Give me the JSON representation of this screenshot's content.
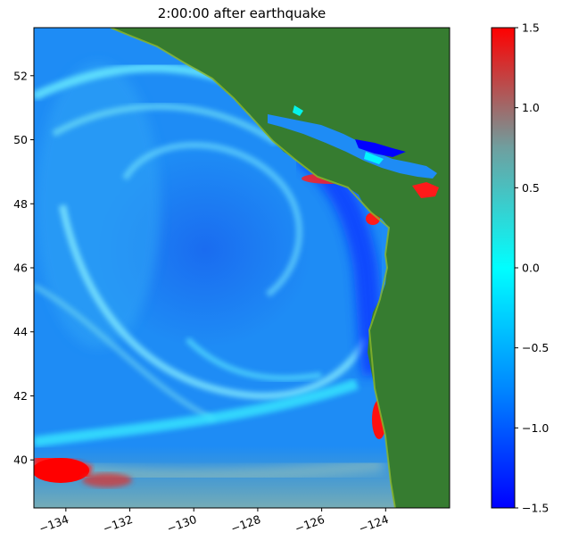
{
  "title": "2:00:00 after earthquake",
  "map": {
    "x_ticks": [
      "−134",
      "−132",
      "−130",
      "−128",
      "−126",
      "−124"
    ],
    "x_tick_values": [
      -134,
      -132,
      -130,
      -128,
      -126,
      -124
    ],
    "y_ticks": [
      "40",
      "42",
      "44",
      "46",
      "48",
      "50",
      "52"
    ],
    "y_tick_values": [
      40,
      42,
      44,
      46,
      48,
      50,
      52
    ],
    "lon_range": [
      -135.0,
      -122.0
    ],
    "lat_range": [
      38.5,
      53.5
    ],
    "land_color": "#367c30",
    "x_tick_rotation": "rotated ~20 degrees",
    "grid": false
  },
  "colorbar": {
    "tick_labels": [
      "1.5",
      "1.0",
      "0.5",
      "0.0",
      "−0.5",
      "−1.0",
      "−1.5"
    ],
    "tick_values": [
      1.5,
      1.0,
      0.5,
      0.0,
      -0.5,
      -1.0,
      -1.5
    ],
    "range": [
      -1.5,
      1.5
    ],
    "colors_low_to_high": [
      "#0000ff",
      "#00c8ff",
      "#00ffff",
      "#6f9f9f",
      "#ff0000"
    ]
  }
}
